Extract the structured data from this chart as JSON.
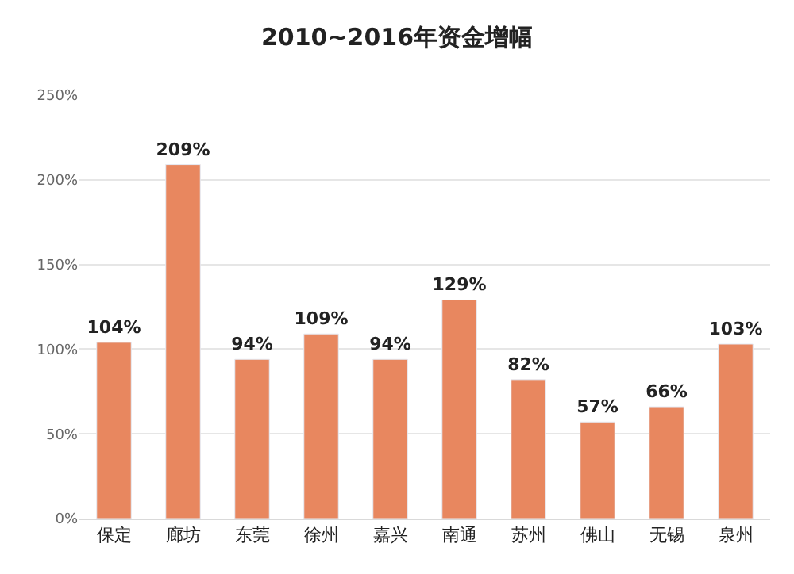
{
  "chart_data": {
    "type": "bar",
    "title": "2010~2016年资金增幅",
    "categories": [
      "保定",
      "廊坊",
      "东莞",
      "徐州",
      "嘉兴",
      "南通",
      "苏州",
      "佛山",
      "无锡",
      "泉州"
    ],
    "values": [
      104,
      209,
      94,
      109,
      94,
      129,
      82,
      57,
      66,
      103
    ],
    "color": "#e8875f",
    "value_labels": [
      "104%",
      "209%",
      "94%",
      "109%",
      "94%",
      "129%",
      "82%",
      "57%",
      "66%",
      "103%"
    ],
    "ylim": [
      0,
      250
    ],
    "yticks": [
      {
        "value": 0,
        "label": "0%"
      },
      {
        "value": 50,
        "label": "50%"
      },
      {
        "value": 100,
        "label": "100%"
      },
      {
        "value": 150,
        "label": "150%"
      },
      {
        "value": 200,
        "label": "200%"
      },
      {
        "value": 250,
        "label": "250%"
      }
    ],
    "grid": "y"
  }
}
